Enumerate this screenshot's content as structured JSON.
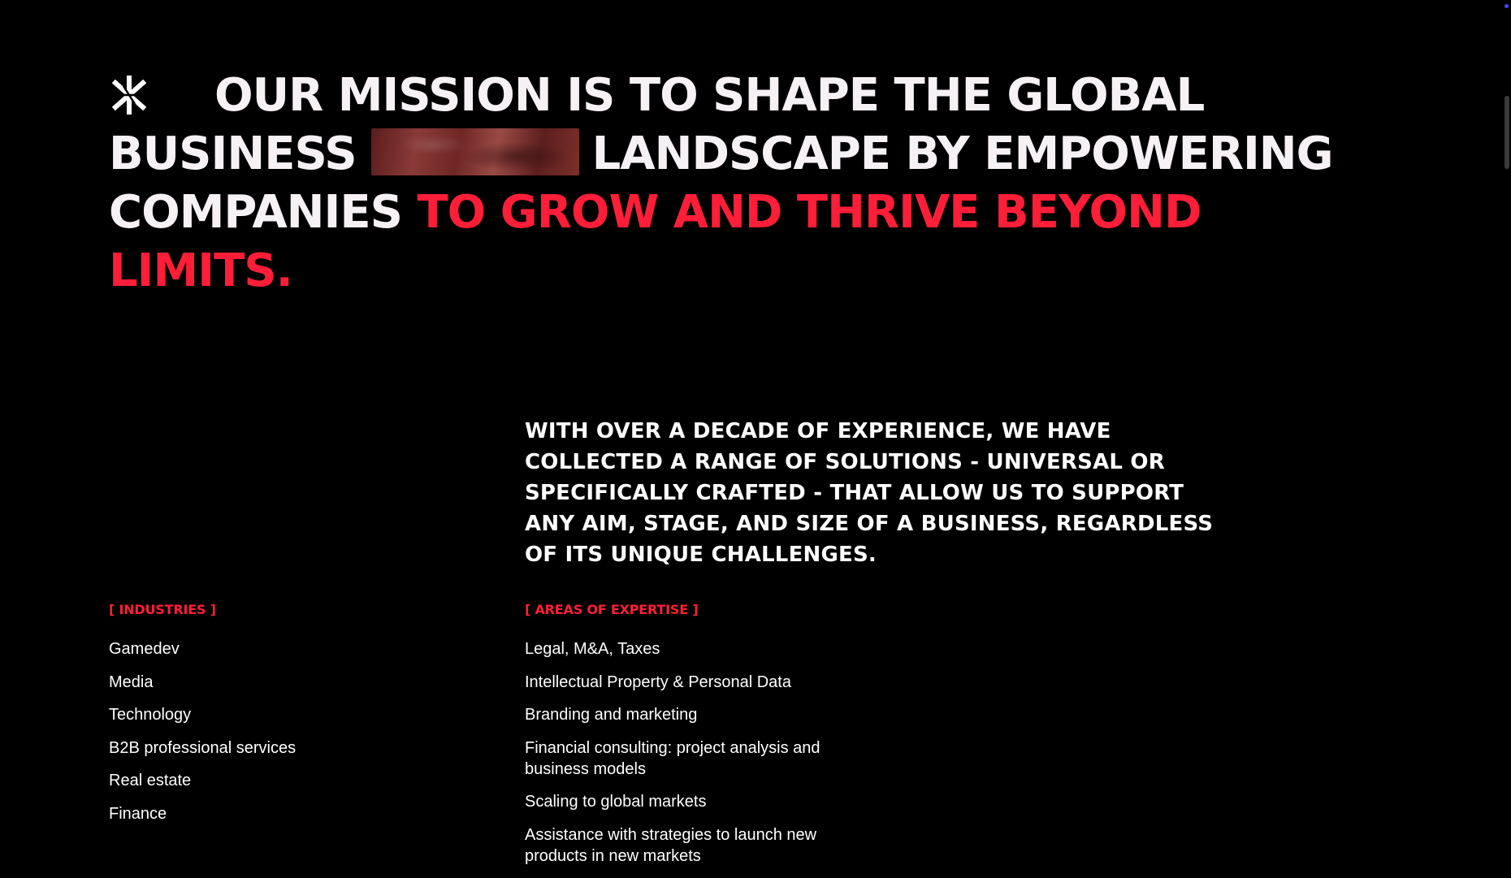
{
  "hero": {
    "line1": "OUR MISSION IS TO SHAPE THE GLOBAL",
    "line2_a": "BUSINESS",
    "line2_b": "LANDSCAPE BY EMPOWERING",
    "line3_a": "COMPANIES",
    "line3_b": "TO GROW AND THRIVE BEYOND",
    "line4": "LIMITS.",
    "accent_color": "#ff1e38",
    "logo_icon": "asterisk-cross-logo-icon"
  },
  "intro": {
    "text": "WITH OVER A DECADE OF EXPERIENCE, WE HAVE COLLECTED A RANGE OF SOLUTIONS - UNIVERSAL OR SPECIFICALLY CRAFTED - THAT ALLOW US TO SUPPORT ANY AIM, STAGE, AND SIZE OF A BUSINESS, REGARDLESS OF ITS UNIQUE CHALLENGES."
  },
  "industries": {
    "label": "[ INDUSTRIES ]",
    "items": [
      "Gamedev",
      "Media",
      "Technology",
      "B2B professional services",
      "Real estate",
      "Finance"
    ]
  },
  "expertise": {
    "label": "[ AREAS OF EXPERTISE ]",
    "items": [
      "Legal, M&A, Taxes",
      "Intellectual Property & Personal Data",
      "Branding and marketing",
      "Financial consulting: project analysis and business models",
      "Scaling to global markets",
      "Assistance with strategies to launch new products in new markets"
    ]
  }
}
